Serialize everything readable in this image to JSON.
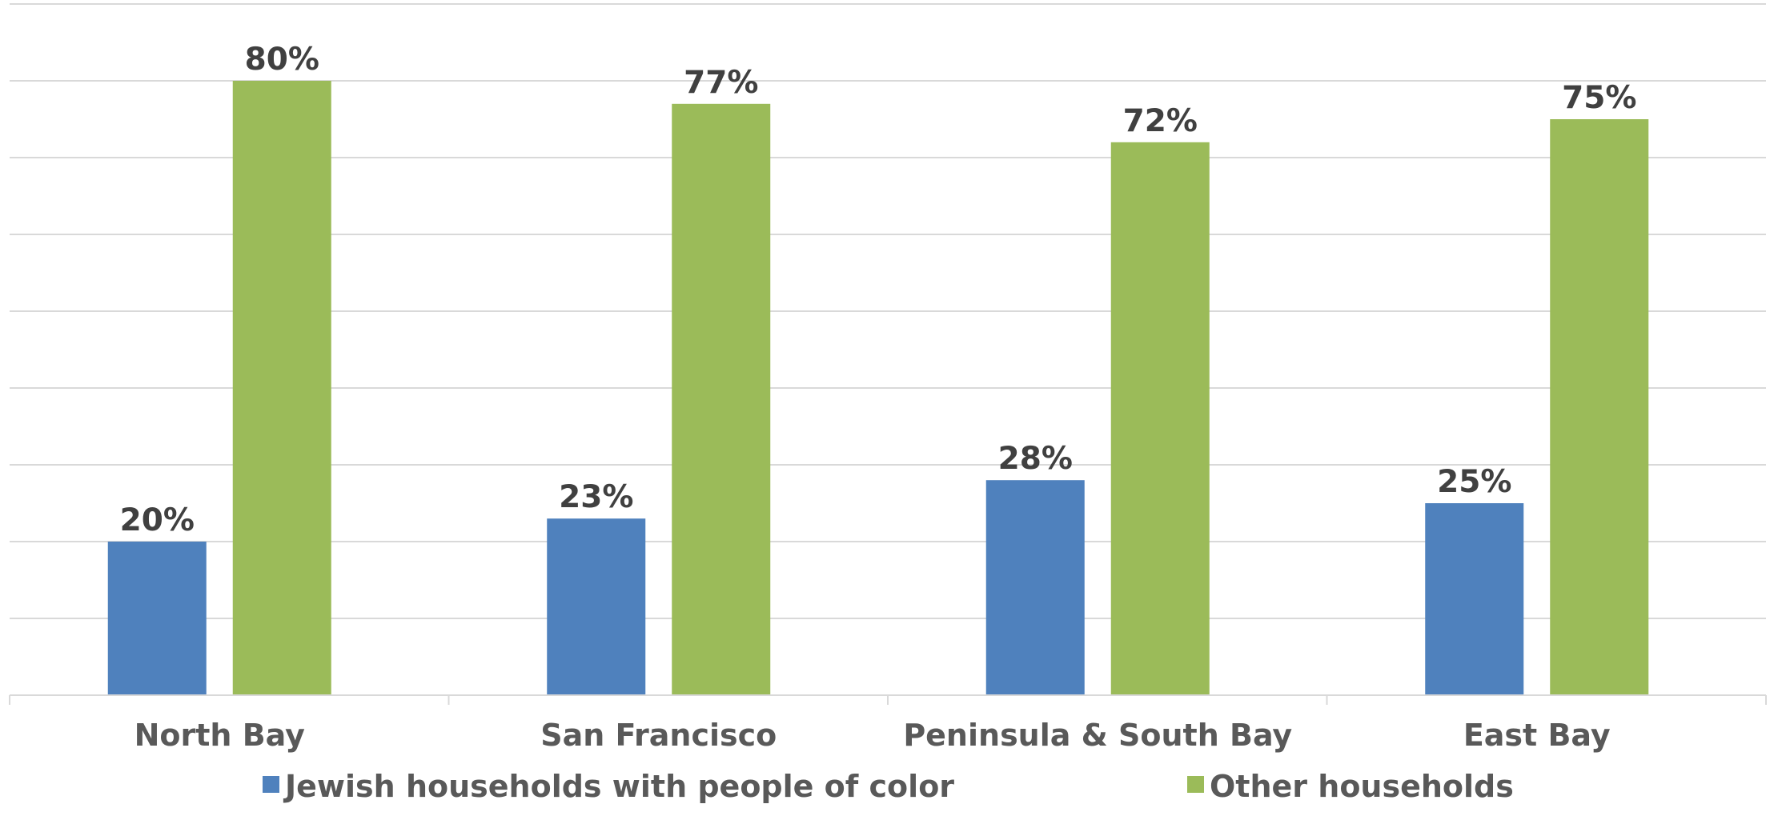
{
  "chart_data": {
    "type": "bar",
    "categories": [
      "North Bay",
      "San Francisco",
      "Peninsula & South Bay",
      "East Bay"
    ],
    "series": [
      {
        "name": "Jewish households with people of color",
        "values": [
          20,
          23,
          28,
          25
        ],
        "color": "#4f81bd"
      },
      {
        "name": "Other households",
        "values": [
          80,
          77,
          72,
          75
        ],
        "color": "#9bbb59"
      }
    ],
    "value_suffix": "%",
    "ylim": [
      0,
      80
    ],
    "grid": true,
    "legend_position": "bottom",
    "title": "",
    "xlabel": "",
    "ylabel": ""
  }
}
